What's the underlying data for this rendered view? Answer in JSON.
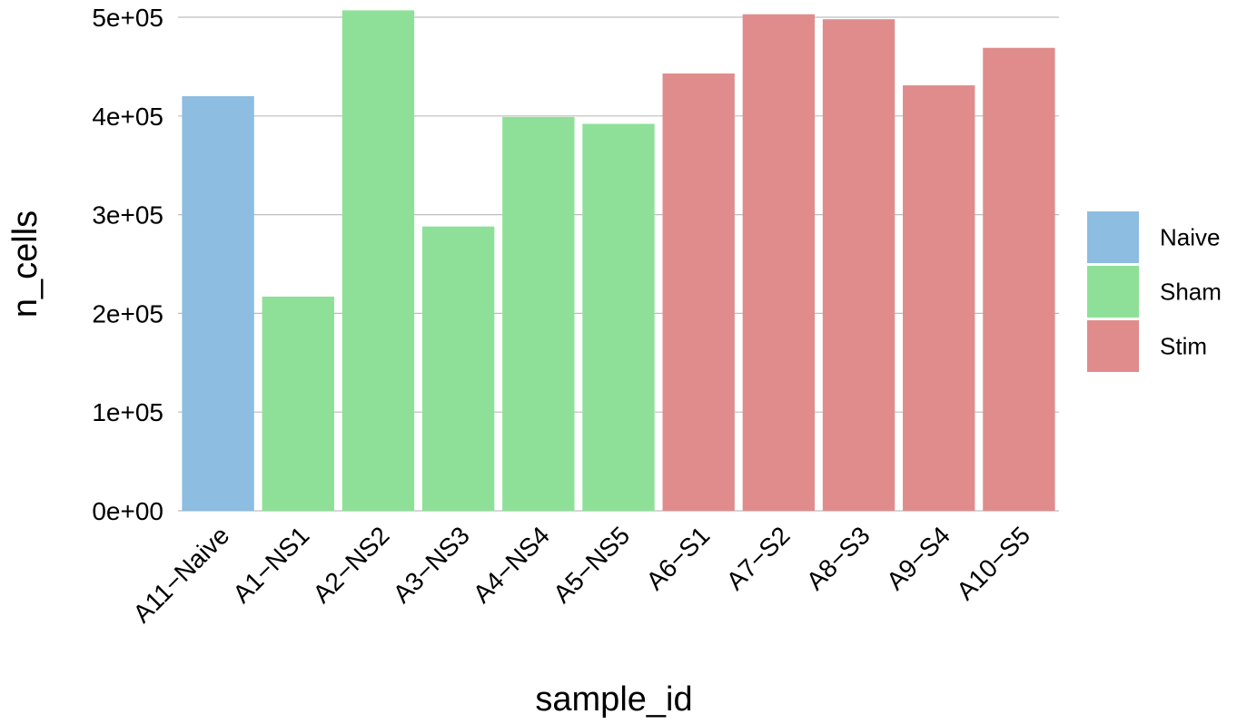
{
  "chart_data": {
    "type": "bar",
    "xlabel": "sample_id",
    "ylabel": "n_cells",
    "ylim": [
      0,
      500000
    ],
    "yticks": [
      {
        "value": 0,
        "label": "0e+00"
      },
      {
        "value": 100000,
        "label": "1e+05"
      },
      {
        "value": 200000,
        "label": "2e+05"
      },
      {
        "value": 300000,
        "label": "3e+05"
      },
      {
        "value": 400000,
        "label": "4e+05"
      },
      {
        "value": 500000,
        "label": "5e+05"
      }
    ],
    "grid": "horizontal",
    "legend_position": "right",
    "groups": [
      {
        "name": "Naive",
        "color": "#8dbde0"
      },
      {
        "name": "Sham",
        "color": "#8ee098"
      },
      {
        "name": "Stim",
        "color": "#e08c8c"
      }
    ],
    "categories": [
      "A11−Naive",
      "A1−NS1",
      "A2−NS2",
      "A3−NS3",
      "A4−NS4",
      "A5−NS5",
      "A6−S1",
      "A7−S2",
      "A8−S3",
      "A9−S4",
      "A10−S5"
    ],
    "values": [
      420000,
      217000,
      507000,
      288000,
      399000,
      392000,
      443000,
      503000,
      498000,
      431000,
      469000
    ],
    "bar_groups": [
      "Naive",
      "Sham",
      "Sham",
      "Sham",
      "Sham",
      "Sham",
      "Stim",
      "Stim",
      "Stim",
      "Stim",
      "Stim"
    ]
  }
}
